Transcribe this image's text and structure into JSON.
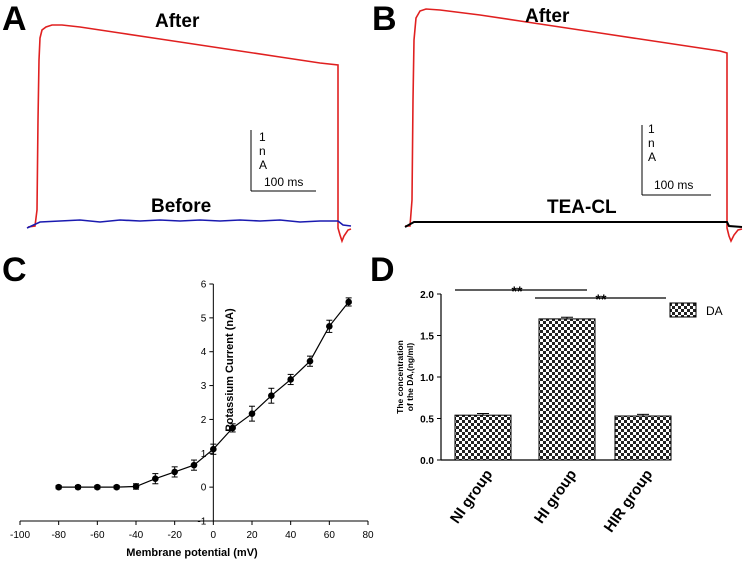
{
  "panels": {
    "a": {
      "letter": "A",
      "after_label": "After",
      "before_label": "Before",
      "scale_current": [
        "1",
        "n",
        "A"
      ],
      "scale_time": "100 ms",
      "after_color": "#e02020",
      "before_color": "#1a1ab0"
    },
    "b": {
      "letter": "B",
      "after_label": "After",
      "tea_label": "TEA-CL",
      "scale_current": [
        "1",
        "n",
        "A"
      ],
      "scale_time": "100 ms",
      "after_color": "#e02020",
      "tea_color": "#000000"
    }
  },
  "chart_data": [
    {
      "panel": "C",
      "type": "scatter",
      "title": "",
      "xlabel": "Membrane potential (mV)",
      "ylabel": "Potassium Current (nA)",
      "xlim": [
        -100,
        80
      ],
      "ylim": [
        -1,
        6
      ],
      "xticks": [
        "-100",
        "-80",
        "-60",
        "-40",
        "-20",
        "0",
        "20",
        "40",
        "60",
        "80"
      ],
      "yticks": [
        "-1",
        "0",
        "1",
        "2",
        "3",
        "4",
        "5",
        "6"
      ],
      "x": [
        -80,
        -70,
        -60,
        -50,
        -40,
        -30,
        -20,
        -10,
        0,
        10,
        20,
        30,
        40,
        50,
        60,
        70
      ],
      "y": [
        0.0,
        0.0,
        0.0,
        0.0,
        0.02,
        0.25,
        0.45,
        0.65,
        1.12,
        1.75,
        2.17,
        2.7,
        3.18,
        3.72,
        4.75,
        5.47
      ],
      "err": [
        0.05,
        0.05,
        0.05,
        0.05,
        0.08,
        0.15,
        0.15,
        0.15,
        0.15,
        0.12,
        0.22,
        0.22,
        0.15,
        0.15,
        0.18,
        0.12
      ]
    },
    {
      "panel": "D",
      "type": "bar",
      "title": "",
      "xlabel": "",
      "ylabel": "The concentration of the DA (ng/ml)",
      "ylabel_lines": [
        "The concentration",
        "of the DA,(ng/ml)"
      ],
      "ylim": [
        0,
        2.0
      ],
      "yticks": [
        "0.0",
        "0.5",
        "1.0",
        "1.5",
        "2.0"
      ],
      "categories": [
        "NI group",
        "HI group",
        "HIR group"
      ],
      "series": [
        {
          "name": "DA",
          "values": [
            0.54,
            1.7,
            0.53
          ],
          "err": [
            0.02,
            0.02,
            0.02
          ]
        }
      ],
      "legend": "top-right",
      "annotations": [
        {
          "from": "NI group",
          "to": "HI group",
          "text": "**"
        },
        {
          "from": "HI group",
          "to": "HIR group",
          "text": "**"
        }
      ]
    }
  ]
}
